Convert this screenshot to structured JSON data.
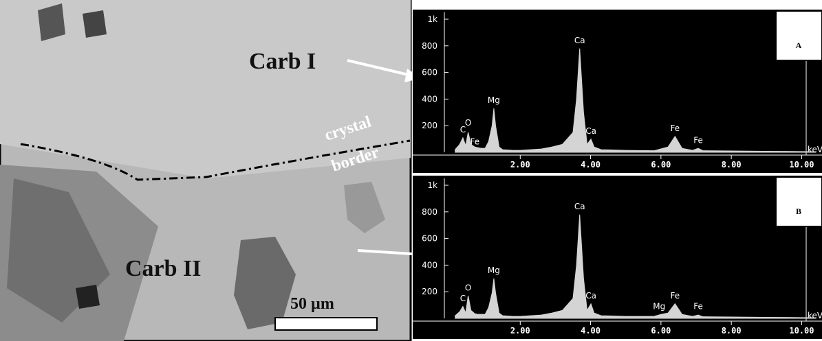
{
  "image": {
    "labels": {
      "carb1": "Carb I",
      "crystal": "crystal",
      "border": "border",
      "carb2": "Carb II",
      "scale": "50 µm"
    }
  },
  "chart_data": [
    {
      "type": "line",
      "panel": "A",
      "xlabel": "keV",
      "x": [
        0.15,
        0.28,
        0.37,
        0.45,
        0.52,
        0.6,
        0.71,
        0.8,
        0.9,
        1.0,
        1.1,
        1.2,
        1.25,
        1.3,
        1.4,
        1.5,
        1.8,
        2.0,
        2.3,
        2.6,
        2.9,
        3.2,
        3.5,
        3.6,
        3.69,
        3.8,
        3.9,
        4.01,
        4.1,
        4.3,
        5.0,
        5.8,
        6.2,
        6.4,
        6.6,
        6.9,
        7.06,
        7.2,
        8.0,
        9.0,
        10.0,
        10.4
      ],
      "values": [
        20,
        60,
        110,
        50,
        150,
        60,
        40,
        35,
        30,
        30,
        80,
        200,
        330,
        200,
        40,
        20,
        15,
        15,
        20,
        25,
        40,
        60,
        150,
        400,
        780,
        300,
        60,
        100,
        40,
        20,
        15,
        12,
        40,
        120,
        30,
        15,
        30,
        12,
        10,
        8,
        6,
        5
      ],
      "color": "#d4d4d4",
      "xlim": [
        0,
        10.5
      ],
      "ylim": [
        0,
        1000
      ],
      "xticks": [
        {
          "value": 2,
          "label": "2.00"
        },
        {
          "value": 4,
          "label": "4.00"
        },
        {
          "value": 6,
          "label": "6.00"
        },
        {
          "value": 8,
          "label": "8.00"
        },
        {
          "value": 10,
          "label": "10.00"
        }
      ],
      "yticks": [
        200,
        400,
        600,
        800,
        {
          "value": 1000,
          "label": "1k"
        }
      ],
      "annotations": [
        {
          "text": "C",
          "x": 0.37,
          "y": 150
        },
        {
          "text": "O",
          "x": 0.52,
          "y": 200
        },
        {
          "text": "Fe",
          "x": 0.71,
          "y": 60
        },
        {
          "text": "Mg",
          "x": 1.25,
          "y": 370
        },
        {
          "text": "Ca",
          "x": 3.69,
          "y": 820
        },
        {
          "text": "Ca",
          "x": 4.01,
          "y": 140
        },
        {
          "text": "Fe",
          "x": 6.4,
          "y": 160
        },
        {
          "text": "Fe",
          "x": 7.06,
          "y": 70
        }
      ]
    },
    {
      "type": "line",
      "panel": "B",
      "xlabel": "keV",
      "x": [
        0.15,
        0.28,
        0.37,
        0.45,
        0.52,
        0.6,
        0.71,
        0.8,
        0.9,
        1.0,
        1.1,
        1.2,
        1.25,
        1.3,
        1.4,
        1.5,
        1.8,
        2.0,
        2.3,
        2.6,
        2.9,
        3.2,
        3.5,
        3.6,
        3.69,
        3.8,
        3.9,
        4.01,
        4.1,
        4.3,
        5.0,
        5.8,
        6.0,
        6.2,
        6.4,
        6.6,
        6.9,
        7.06,
        7.2,
        8.0,
        9.0,
        10.0,
        10.4
      ],
      "values": [
        20,
        50,
        90,
        40,
        170,
        60,
        35,
        30,
        30,
        30,
        80,
        190,
        300,
        190,
        40,
        20,
        15,
        15,
        20,
        25,
        40,
        60,
        150,
        400,
        780,
        300,
        60,
        110,
        40,
        20,
        15,
        15,
        30,
        40,
        110,
        30,
        15,
        25,
        12,
        10,
        8,
        6,
        5
      ],
      "color": "#d4d4d4",
      "xlim": [
        0,
        10.5
      ],
      "ylim": [
        0,
        1000
      ],
      "xticks": [
        {
          "value": 2,
          "label": "2.00"
        },
        {
          "value": 4,
          "label": "4.00"
        },
        {
          "value": 6,
          "label": "6.00"
        },
        {
          "value": 8,
          "label": "8.00"
        },
        {
          "value": 10,
          "label": "10.00"
        }
      ],
      "yticks": [
        200,
        400,
        600,
        800,
        {
          "value": 1000,
          "label": "1k"
        }
      ],
      "annotations": [
        {
          "text": "C",
          "x": 0.37,
          "y": 130
        },
        {
          "text": "O",
          "x": 0.52,
          "y": 210
        },
        {
          "text": "Mg",
          "x": 1.25,
          "y": 340
        },
        {
          "text": "Ca",
          "x": 3.69,
          "y": 820
        },
        {
          "text": "Ca",
          "x": 4.01,
          "y": 150
        },
        {
          "text": "Mg",
          "x": 5.95,
          "y": 70
        },
        {
          "text": "Fe",
          "x": 6.4,
          "y": 150
        },
        {
          "text": "Fe",
          "x": 7.06,
          "y": 70
        }
      ]
    }
  ]
}
